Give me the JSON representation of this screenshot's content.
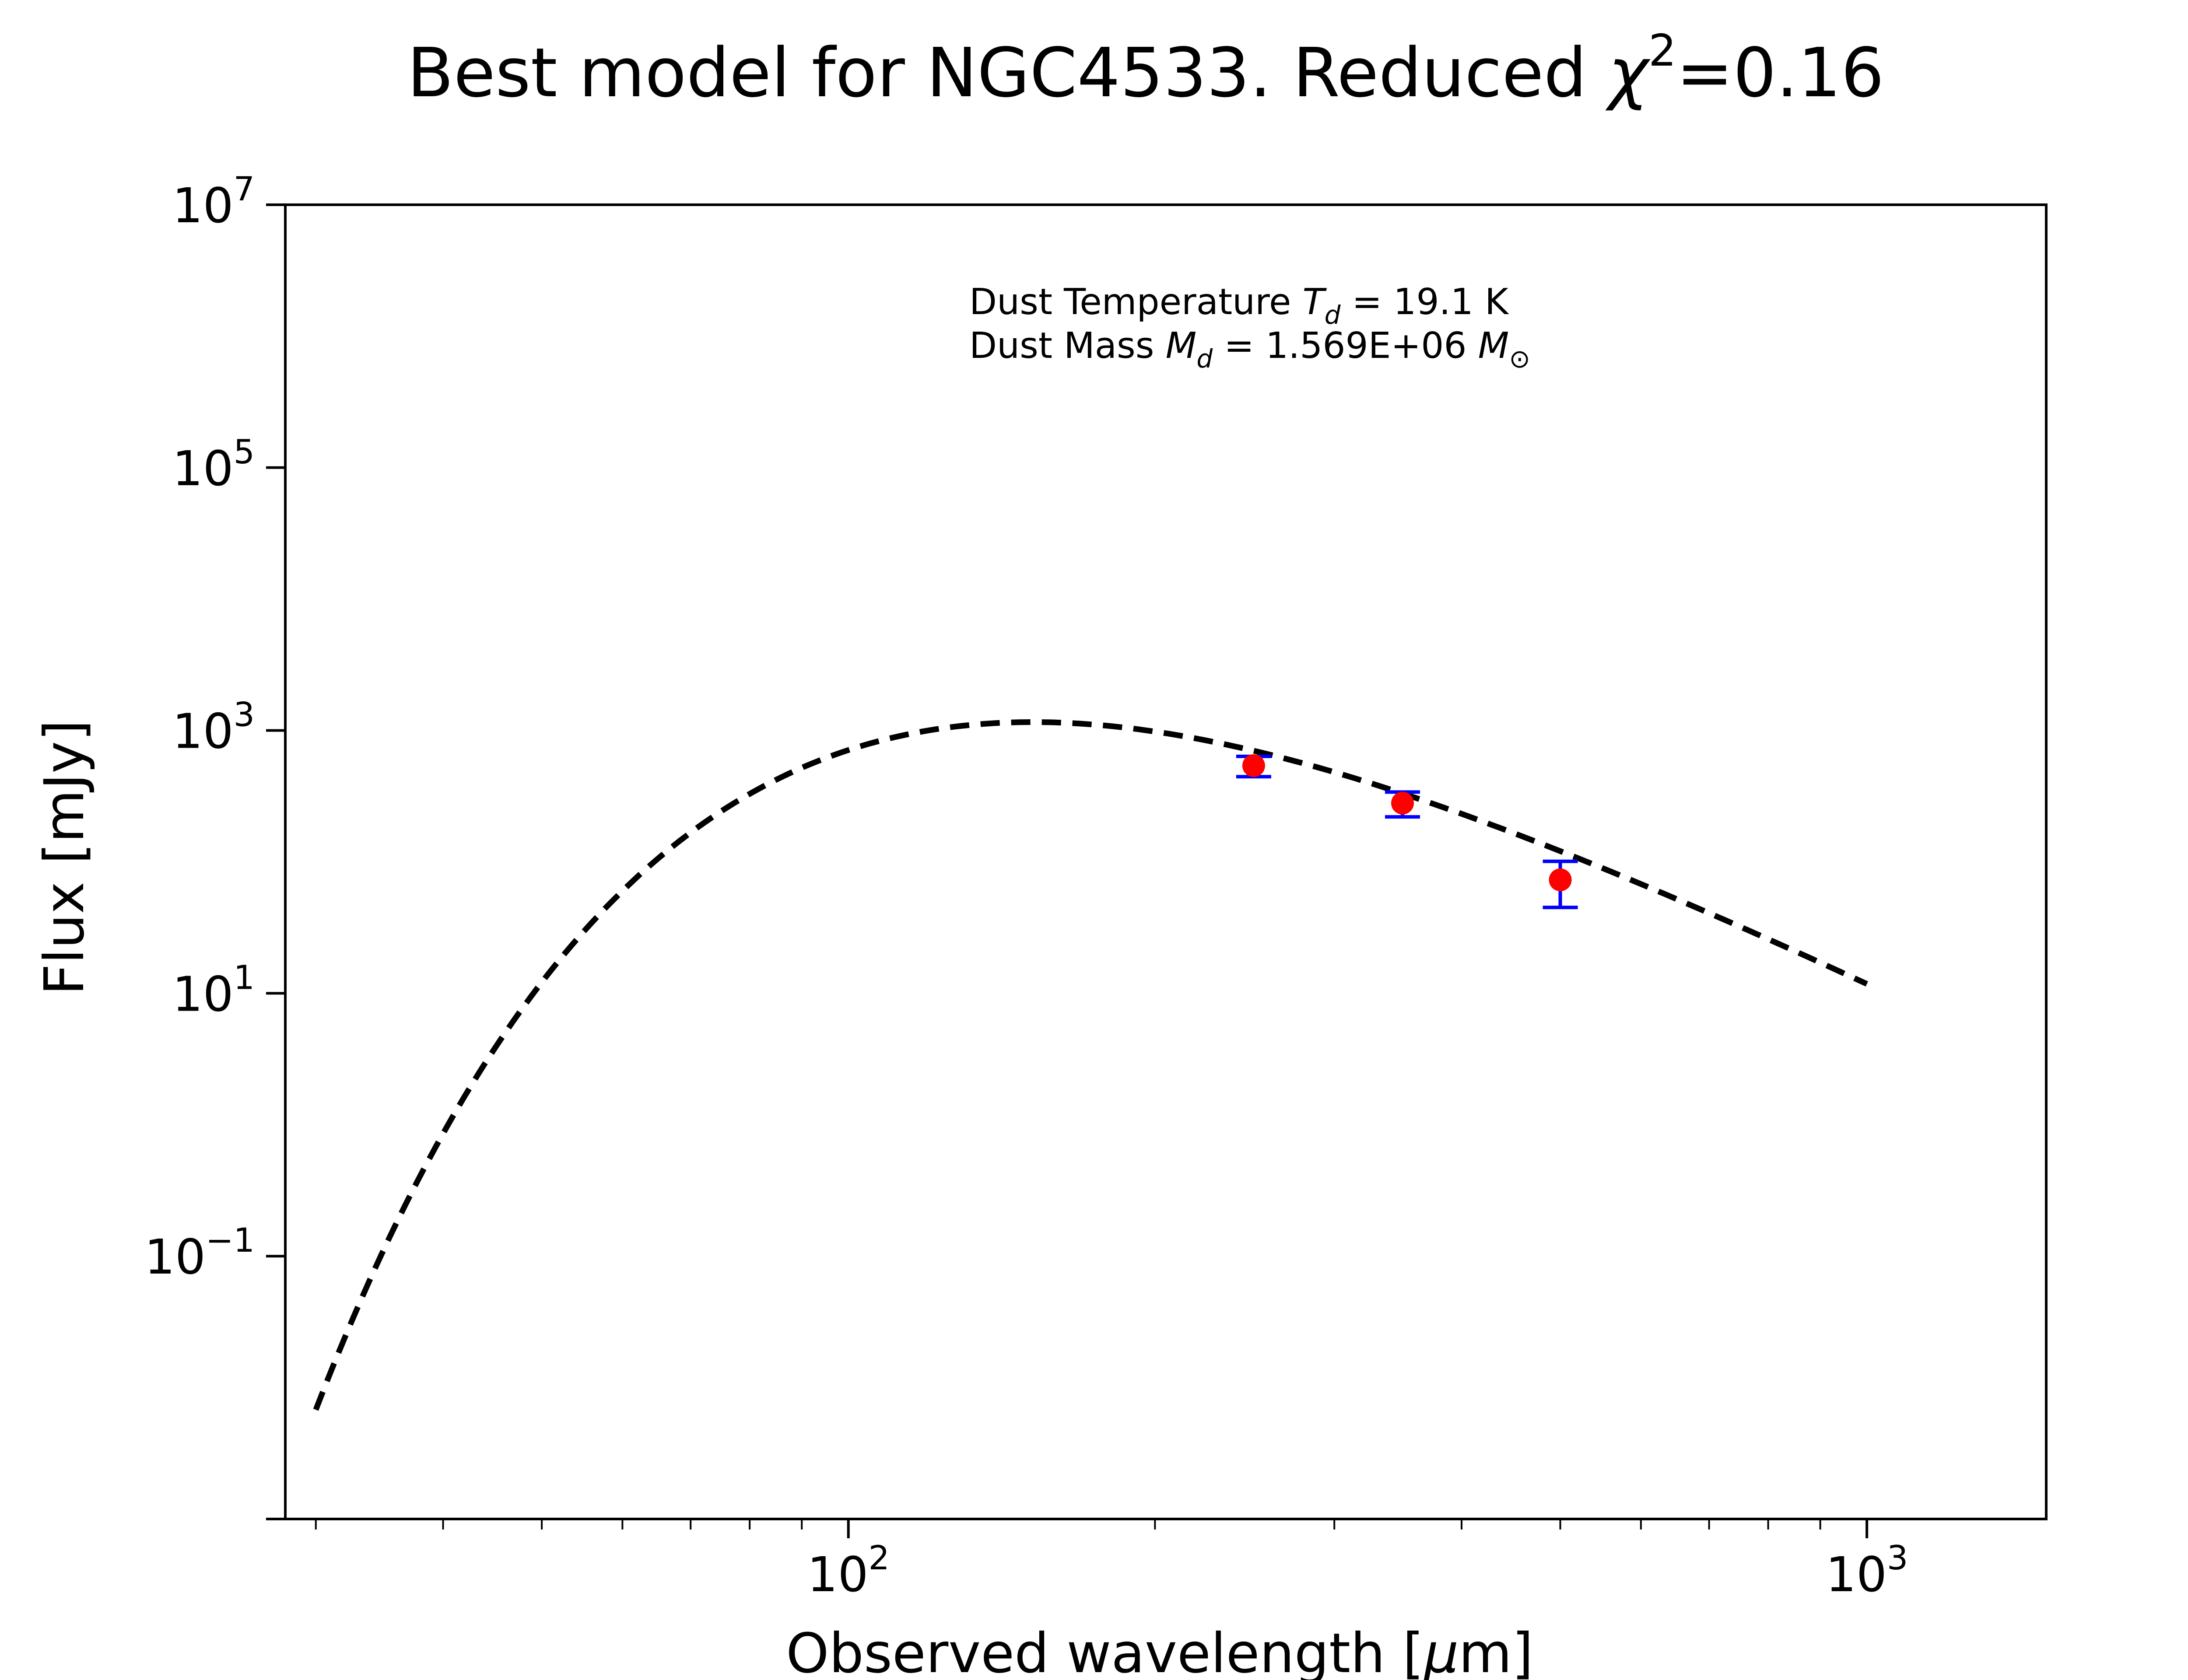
{
  "chart_data": {
    "type": "scatter",
    "title": {
      "prefix": "Best model for NGC4533. Reduced ",
      "symbol": "χ",
      "superscript": "2",
      "suffix": "=0.16"
    },
    "xlabel": {
      "prefix": "Observed wavelength [",
      "unit_symbol": "μ",
      "suffix": "m]"
    },
    "ylabel": "Flux [mJy]",
    "x_scale": "log",
    "y_scale": "log",
    "xlim": [
      28,
      1500
    ],
    "ylim": [
      0.001,
      10000000
    ],
    "x_ticks": [
      {
        "value": 100,
        "base": "10",
        "exp": "2"
      },
      {
        "value": 1000,
        "base": "10",
        "exp": "3"
      }
    ],
    "y_ticks": [
      {
        "value": 0.1,
        "base": "10",
        "exp": "−1"
      },
      {
        "value": 10,
        "base": "10",
        "exp": "1"
      },
      {
        "value": 1000,
        "base": "10",
        "exp": "3"
      },
      {
        "value": 100000,
        "base": "10",
        "exp": "5"
      },
      {
        "value": 10000000,
        "base": "10",
        "exp": "7"
      }
    ],
    "grid": false,
    "annotation": {
      "line1": {
        "prefix": "Dust Temperature ",
        "symbol": "T",
        "subscript": "d",
        "suffix": " = 19.1 K"
      },
      "line2": {
        "prefix": "Dust Mass ",
        "symbol": "M",
        "subscript": "d",
        "middle": " = 1.569E+06 ",
        "unit_symbol": "M",
        "unit_subscript": "⊙"
      }
    },
    "model": {
      "style": "dashed",
      "color": "#000000",
      "temperature_K": 19.1,
      "beta": 2.0,
      "peak_wavelength_um": 160,
      "peak_flux_mJy": 1150,
      "x_range": [
        30,
        1000
      ]
    },
    "series": [
      {
        "marker_color": "#ff0000",
        "errorbar_color": "#0000ff",
        "x": [
          250,
          350,
          500
        ],
        "y": [
          540,
          280,
          73
        ],
        "yerr": [
          95,
          60,
          28
        ]
      }
    ]
  }
}
